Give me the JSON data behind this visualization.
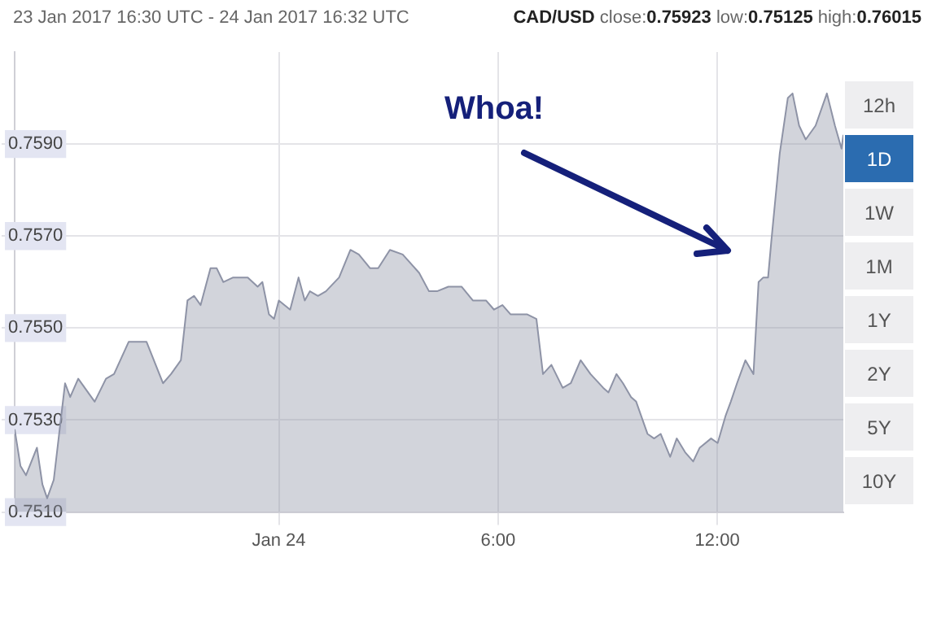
{
  "chart_data": {
    "type": "area",
    "title": "23 Jan 2017 16:30 UTC - 24 Jan 2017 16:32 UTC",
    "subtitle": "CAD/USD close:0.75923 low:0.75125 high:0.76015",
    "annotations": [
      "Whoa!",
      "12h",
      "1D",
      "1W",
      "1M",
      "1Y",
      "2Y",
      "5Y",
      "10Y"
    ],
    "x": [
      -7.23,
      -7.07,
      -6.92,
      -6.62,
      -6.47,
      -6.34,
      -6.16,
      -5.85,
      -5.71,
      -5.49,
      -5.04,
      -4.73,
      -4.51,
      -4.11,
      -3.84,
      -3.62,
      -3.17,
      -2.95,
      -2.68,
      -2.5,
      -2.32,
      -2.14,
      -1.87,
      -1.7,
      -1.52,
      -1.25,
      -0.85,
      -0.58,
      -0.45,
      -0.27,
      -0.13,
      0,
      0.31,
      0.54,
      0.71,
      0.85,
      1.07,
      1.29,
      1.65,
      1.96,
      2.19,
      2.5,
      2.72,
      3.04,
      3.39,
      3.84,
      4.11,
      4.33,
      4.64,
      4.87,
      5.0,
      5.31,
      5.67,
      5.89,
      6.12,
      6.34,
      6.79,
      7.05,
      7.23,
      7.46,
      7.77,
      7.99,
      8.26,
      8.53,
      8.88,
      9.02,
      9.24,
      9.42,
      9.64,
      9.78,
      10.09,
      10.27,
      10.45,
      10.71,
      10.89,
      11.12,
      11.34,
      11.52,
      11.83,
      12.01,
      12.23,
      12.37,
      12.54,
      12.77,
      12.99,
      13.13,
      13.26,
      13.39,
      13.48,
      13.71,
      13.93,
      14.06,
      14.24,
      14.42,
      14.69,
      15,
      15.22,
      15.4,
      15.45
    ],
    "series": [
      {
        "color": "#8e93a6",
        "values": [
          0.7528,
          0.752,
          0.7518,
          0.7524,
          0.7516,
          0.7513,
          0.7517,
          0.7538,
          0.7535,
          0.7539,
          0.7534,
          0.7539,
          0.754,
          0.7547,
          0.7547,
          0.7547,
          0.7538,
          0.754,
          0.7543,
          0.7556,
          0.7557,
          0.7555,
          0.7563,
          0.7563,
          0.756,
          0.7561,
          0.7561,
          0.7559,
          0.756,
          0.7553,
          0.7552,
          0.7556,
          0.7554,
          0.7561,
          0.7556,
          0.7558,
          0.7557,
          0.7558,
          0.7561,
          0.7567,
          0.7566,
          0.7563,
          0.7563,
          0.7567,
          0.7566,
          0.7562,
          0.7558,
          0.7558,
          0.7559,
          0.7559,
          0.7559,
          0.7556,
          0.7556,
          0.7554,
          0.7555,
          0.7553,
          0.7553,
          0.7552,
          0.754,
          0.7542,
          0.7537,
          0.7538,
          0.7543,
          0.754,
          0.7537,
          0.7536,
          0.754,
          0.7538,
          0.7535,
          0.7534,
          0.7527,
          0.7526,
          0.7527,
          0.7522,
          0.7526,
          0.7523,
          0.7521,
          0.7524,
          0.7526,
          0.7525,
          0.7531,
          0.7534,
          0.7538,
          0.7543,
          0.754,
          0.756,
          0.7561,
          0.7561,
          0.7569,
          0.7588,
          0.76,
          0.7601,
          0.7594,
          0.7591,
          0.7594,
          0.7601,
          0.7594,
          0.7589,
          0.7592
        ]
      }
    ],
    "xlim": [
      -7.23,
      15.45
    ],
    "xticks": [
      {
        "value": 0,
        "label": "Jan 24"
      },
      {
        "value": 6,
        "label": "6:00"
      },
      {
        "value": 12,
        "label": "12:00"
      }
    ],
    "ylim": [
      0.751,
      0.761
    ],
    "yticks": [
      {
        "value": 0.751,
        "label": "0.7510"
      },
      {
        "value": 0.753,
        "label": "0.7530"
      },
      {
        "value": 0.755,
        "label": "0.7550"
      },
      {
        "value": 0.757,
        "label": "0.7570"
      },
      {
        "value": 0.759,
        "label": "0.7590"
      }
    ],
    "grid": true,
    "legend": false
  }
}
